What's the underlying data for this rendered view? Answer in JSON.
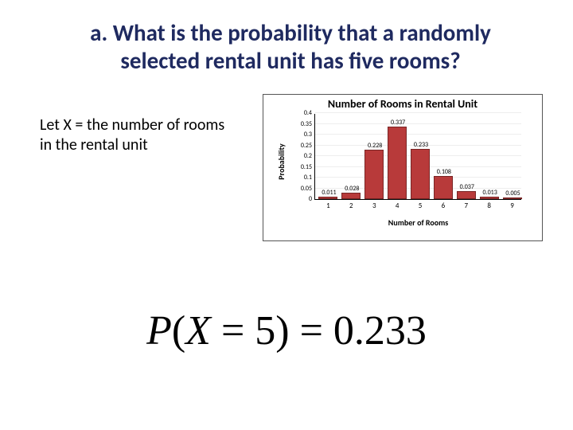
{
  "heading": {
    "line1": "a.  What is the probability that a randomly",
    "line2": "selected rental unit has five rooms?"
  },
  "let_text": "Let X = the number of rooms in the rental unit",
  "chart": {
    "type": "bar",
    "title": "Number of Rooms in Rental Unit",
    "xlabel": "Number of Rooms",
    "ylabel": "Probability",
    "categories": [
      "1",
      "2",
      "3",
      "4",
      "5",
      "6",
      "7",
      "8",
      "9"
    ],
    "values": [
      0.011,
      0.028,
      0.228,
      0.337,
      0.233,
      0.108,
      0.037,
      0.013,
      0.005
    ],
    "value_labels": [
      "0.011",
      "0.028",
      "0.228",
      "0.337",
      "0.233",
      "0.108",
      "0.037",
      "0.013",
      "0.005"
    ],
    "ylim": [
      0,
      0.4
    ],
    "yticks": [
      0,
      0.05,
      0.1,
      0.15,
      0.2,
      0.25,
      0.3,
      0.35,
      0.4
    ],
    "ytick_labels": [
      "0",
      "0.05",
      "0.1",
      "0.15",
      "0.2",
      "0.25",
      "0.3",
      "0.35",
      "0.4"
    ],
    "bar_color": "#b83a3a",
    "bar_border": "#7a2626",
    "background_color": "#ffffff",
    "title_fontsize": 14,
    "label_fontsize": 10,
    "tick_fontsize": 8
  },
  "equation": {
    "lhs_P": "P",
    "lhs_open": "(",
    "lhs_X": "X",
    "lhs_eq": " = 5) = ",
    "rhs": "0.233"
  }
}
